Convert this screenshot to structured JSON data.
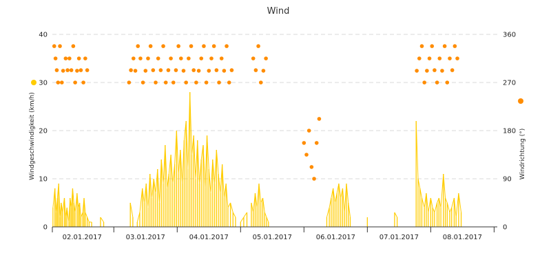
{
  "chart_data": {
    "type": "line+scatter",
    "title": "Wind",
    "x_ticks": [
      "02.01.2017",
      "03.01.2017",
      "04.01.2017",
      "05.01.2017",
      "06.01.2017",
      "07.01.2017",
      "08.01.2017"
    ],
    "y_left": {
      "label": "Windgeschwindigkeit (km/h)",
      "ticks": [
        0,
        10,
        20,
        30,
        40
      ],
      "ylim": [
        0,
        40
      ]
    },
    "y_right": {
      "label": "Windrichtung (°)",
      "ticks": [
        0,
        90,
        180,
        270,
        360
      ],
      "ylim": [
        0,
        360
      ]
    },
    "grid": "horizontal-dashed",
    "x_range_days": [
      1.03,
      8.05
    ],
    "series": [
      {
        "kind": "speed",
        "color": "#ffcc00",
        "points": [
          [
            1.04,
            4
          ],
          [
            1.07,
            8
          ],
          [
            1.09,
            3
          ],
          [
            1.11,
            6
          ],
          [
            1.13,
            9
          ],
          [
            1.15,
            2
          ],
          [
            1.17,
            5
          ],
          [
            1.19,
            3
          ],
          [
            1.22,
            6
          ],
          [
            1.24,
            2
          ],
          [
            1.26,
            4
          ],
          [
            1.29,
            1
          ],
          [
            1.31,
            6
          ],
          [
            1.33,
            4
          ],
          [
            1.35,
            8
          ],
          [
            1.37,
            5
          ],
          [
            1.39,
            3
          ],
          [
            1.42,
            7
          ],
          [
            1.44,
            4
          ],
          [
            1.46,
            5
          ],
          [
            1.48,
            2
          ],
          [
            1.51,
            3
          ],
          [
            1.53,
            6
          ],
          [
            1.55,
            3
          ],
          [
            1.58,
            2
          ],
          [
            1.61,
            1
          ],
          [
            1.65,
            1
          ],
          [
            1.79,
            2
          ],
          [
            1.84,
            1
          ],
          [
            2.26,
            5
          ],
          [
            2.3,
            2
          ],
          [
            2.37,
            1
          ],
          [
            2.41,
            3
          ],
          [
            2.45,
            8
          ],
          [
            2.48,
            5
          ],
          [
            2.51,
            9
          ],
          [
            2.54,
            4
          ],
          [
            2.57,
            11
          ],
          [
            2.6,
            6
          ],
          [
            2.63,
            10
          ],
          [
            2.66,
            7
          ],
          [
            2.69,
            12
          ],
          [
            2.72,
            5
          ],
          [
            2.75,
            14
          ],
          [
            2.78,
            9
          ],
          [
            2.81,
            17
          ],
          [
            2.84,
            8
          ],
          [
            2.87,
            11
          ],
          [
            2.9,
            15
          ],
          [
            2.93,
            9
          ],
          [
            2.96,
            13
          ],
          [
            2.99,
            20
          ],
          [
            3.02,
            11
          ],
          [
            3.05,
            16
          ],
          [
            3.08,
            9
          ],
          [
            3.11,
            18
          ],
          [
            3.14,
            22
          ],
          [
            3.17,
            12
          ],
          [
            3.2,
            28
          ],
          [
            3.23,
            15
          ],
          [
            3.26,
            19
          ],
          [
            3.29,
            10
          ],
          [
            3.32,
            18
          ],
          [
            3.35,
            9
          ],
          [
            3.38,
            14
          ],
          [
            3.41,
            17
          ],
          [
            3.44,
            8
          ],
          [
            3.47,
            19
          ],
          [
            3.5,
            12
          ],
          [
            3.53,
            7
          ],
          [
            3.56,
            14
          ],
          [
            3.59,
            9
          ],
          [
            3.62,
            16
          ],
          [
            3.65,
            11
          ],
          [
            3.68,
            7
          ],
          [
            3.71,
            13
          ],
          [
            3.74,
            6
          ],
          [
            3.77,
            9
          ],
          [
            3.8,
            4
          ],
          [
            3.84,
            5
          ],
          [
            3.88,
            3
          ],
          [
            3.92,
            2
          ],
          [
            4.0,
            1
          ],
          [
            4.05,
            2
          ],
          [
            4.1,
            3
          ],
          [
            4.17,
            5
          ],
          [
            4.2,
            3
          ],
          [
            4.23,
            7
          ],
          [
            4.26,
            4
          ],
          [
            4.29,
            9
          ],
          [
            4.32,
            5
          ],
          [
            4.35,
            6
          ],
          [
            4.38,
            3
          ],
          [
            4.41,
            2
          ],
          [
            4.44,
            1
          ],
          [
            5.36,
            2
          ],
          [
            5.4,
            4
          ],
          [
            5.43,
            6
          ],
          [
            5.46,
            8
          ],
          [
            5.49,
            5
          ],
          [
            5.52,
            7
          ],
          [
            5.55,
            9
          ],
          [
            5.58,
            6
          ],
          [
            5.61,
            8
          ],
          [
            5.64,
            3
          ],
          [
            5.67,
            9
          ],
          [
            5.7,
            5
          ],
          [
            5.73,
            2
          ],
          [
            6.0,
            2
          ],
          [
            6.43,
            3
          ],
          [
            6.47,
            2
          ],
          [
            6.77,
            22
          ],
          [
            6.8,
            10
          ],
          [
            6.83,
            8
          ],
          [
            6.86,
            6
          ],
          [
            6.9,
            4
          ],
          [
            6.93,
            7
          ],
          [
            6.96,
            3
          ],
          [
            7.0,
            6
          ],
          [
            7.03,
            4
          ],
          [
            7.06,
            3
          ],
          [
            7.1,
            5
          ],
          [
            7.13,
            6
          ],
          [
            7.16,
            4
          ],
          [
            7.2,
            11
          ],
          [
            7.23,
            6
          ],
          [
            7.26,
            5
          ],
          [
            7.3,
            3
          ],
          [
            7.33,
            4
          ],
          [
            7.37,
            6
          ],
          [
            7.4,
            2
          ],
          [
            7.44,
            7
          ],
          [
            7.48,
            3
          ]
        ]
      },
      {
        "kind": "direction",
        "color": "#ff8c00",
        "points": [
          [
            1.06,
            338
          ],
          [
            1.08,
            315
          ],
          [
            1.1,
            293
          ],
          [
            1.12,
            270
          ],
          [
            1.15,
            338
          ],
          [
            1.18,
            270
          ],
          [
            1.2,
            292
          ],
          [
            1.24,
            315
          ],
          [
            1.27,
            293
          ],
          [
            1.3,
            315
          ],
          [
            1.33,
            293
          ],
          [
            1.36,
            338
          ],
          [
            1.39,
            270
          ],
          [
            1.42,
            292
          ],
          [
            1.45,
            315
          ],
          [
            1.48,
            293
          ],
          [
            1.52,
            270
          ],
          [
            1.55,
            315
          ],
          [
            1.58,
            293
          ],
          [
            2.24,
            270
          ],
          [
            2.27,
            293
          ],
          [
            2.31,
            315
          ],
          [
            2.34,
            292
          ],
          [
            2.38,
            338
          ],
          [
            2.42,
            315
          ],
          [
            2.46,
            270
          ],
          [
            2.5,
            292
          ],
          [
            2.54,
            315
          ],
          [
            2.58,
            338
          ],
          [
            2.62,
            293
          ],
          [
            2.66,
            270
          ],
          [
            2.7,
            315
          ],
          [
            2.74,
            293
          ],
          [
            2.78,
            338
          ],
          [
            2.82,
            270
          ],
          [
            2.86,
            293
          ],
          [
            2.9,
            315
          ],
          [
            2.94,
            270
          ],
          [
            2.98,
            293
          ],
          [
            3.02,
            338
          ],
          [
            3.06,
            315
          ],
          [
            3.1,
            292
          ],
          [
            3.14,
            270
          ],
          [
            3.18,
            315
          ],
          [
            3.22,
            338
          ],
          [
            3.26,
            293
          ],
          [
            3.3,
            270
          ],
          [
            3.34,
            292
          ],
          [
            3.38,
            315
          ],
          [
            3.42,
            338
          ],
          [
            3.46,
            270
          ],
          [
            3.5,
            292
          ],
          [
            3.54,
            315
          ],
          [
            3.58,
            338
          ],
          [
            3.62,
            293
          ],
          [
            3.66,
            270
          ],
          [
            3.7,
            315
          ],
          [
            3.74,
            292
          ],
          [
            3.78,
            338
          ],
          [
            3.82,
            270
          ],
          [
            3.86,
            293
          ],
          [
            4.2,
            315
          ],
          [
            4.24,
            293
          ],
          [
            4.28,
            338
          ],
          [
            4.32,
            270
          ],
          [
            4.36,
            292
          ],
          [
            4.4,
            315
          ],
          [
            5.0,
            157
          ],
          [
            5.04,
            135
          ],
          [
            5.08,
            180
          ],
          [
            5.12,
            112
          ],
          [
            5.16,
            90
          ],
          [
            5.2,
            157
          ],
          [
            5.24,
            202
          ],
          [
            6.78,
            292
          ],
          [
            6.82,
            315
          ],
          [
            6.86,
            338
          ],
          [
            6.9,
            270
          ],
          [
            6.94,
            292
          ],
          [
            6.98,
            315
          ],
          [
            7.02,
            338
          ],
          [
            7.06,
            293
          ],
          [
            7.1,
            270
          ],
          [
            7.14,
            315
          ],
          [
            7.18,
            292
          ],
          [
            7.22,
            338
          ],
          [
            7.26,
            270
          ],
          [
            7.3,
            315
          ],
          [
            7.34,
            293
          ],
          [
            7.38,
            338
          ],
          [
            7.42,
            315
          ]
        ]
      }
    ]
  }
}
